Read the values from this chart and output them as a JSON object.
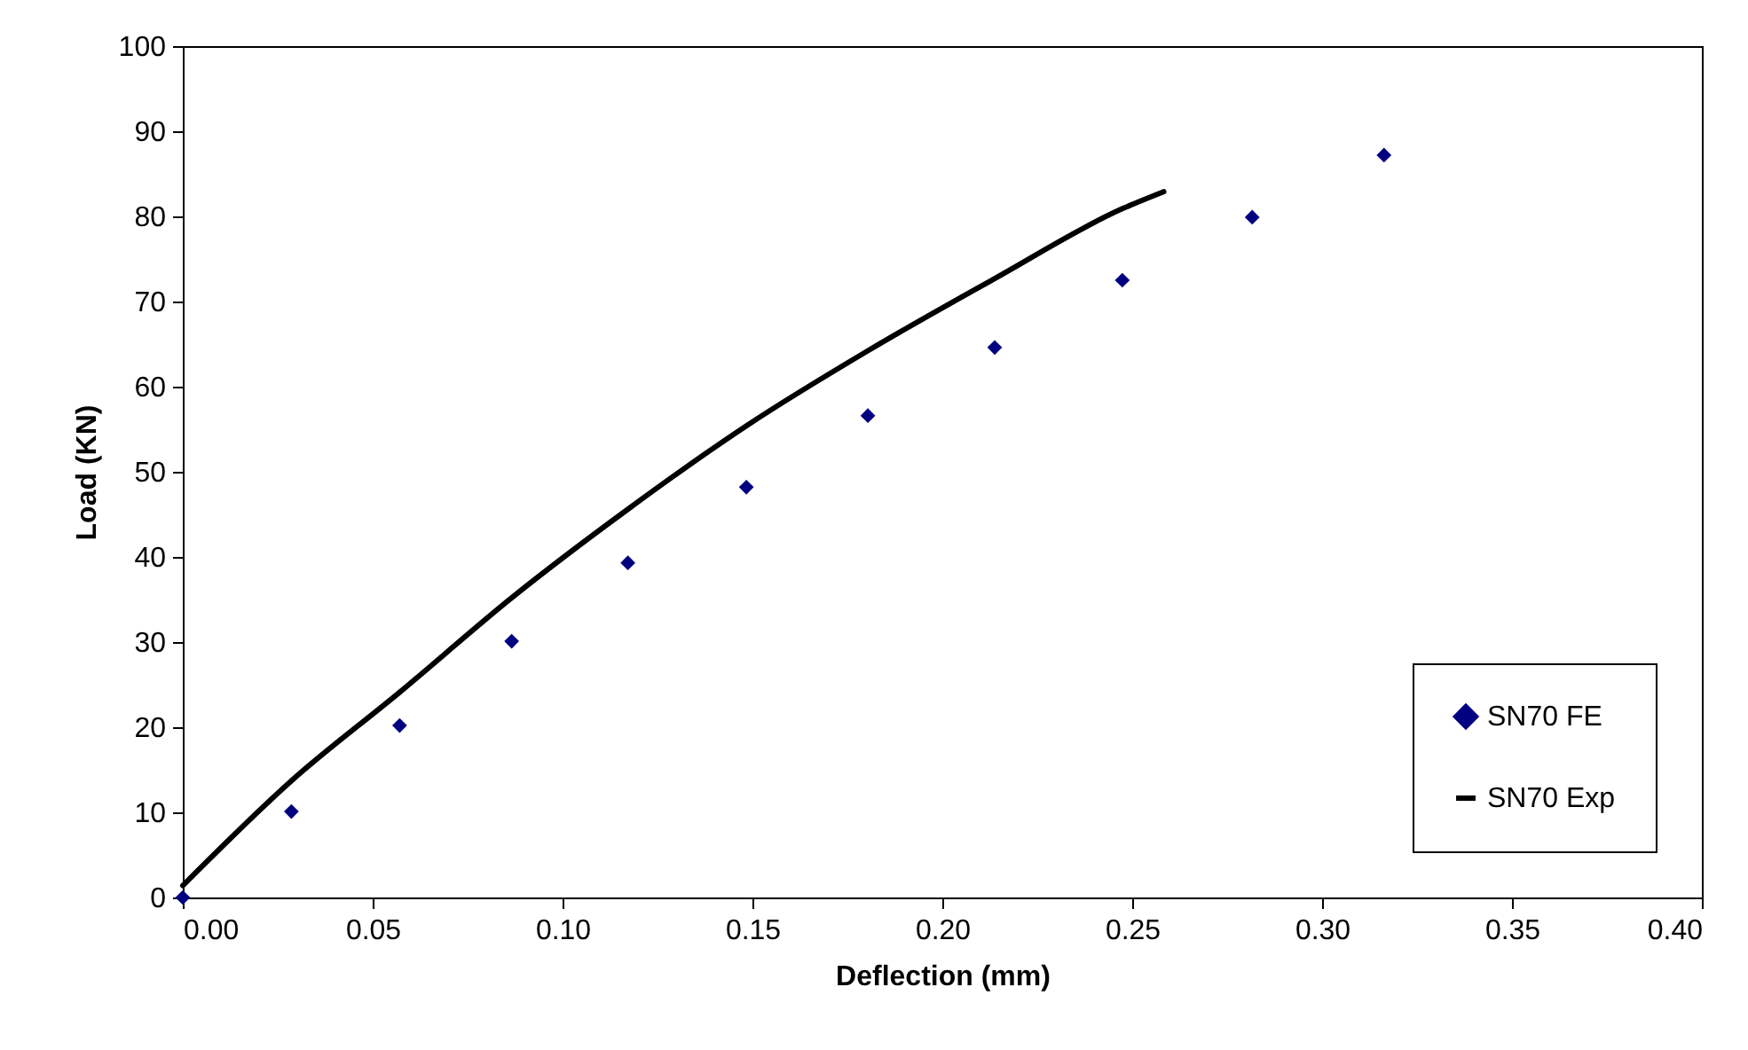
{
  "chart_data": {
    "type": "scatter",
    "xlabel": "Deflection (mm)",
    "ylabel": "Load (KN)",
    "xlim": [
      0,
      0.4
    ],
    "ylim": [
      0,
      100
    ],
    "xticks": [
      {
        "value": 0,
        "label": "0.00"
      },
      {
        "value": 0.05,
        "label": "0.05"
      },
      {
        "value": 0.1,
        "label": "0.10"
      },
      {
        "value": 0.15,
        "label": "0.15"
      },
      {
        "value": 0.2,
        "label": "0.20"
      },
      {
        "value": 0.25,
        "label": "0.25"
      },
      {
        "value": 0.3,
        "label": "0.30"
      },
      {
        "value": 0.35,
        "label": "0.35"
      },
      {
        "value": 0.4,
        "label": "0.40"
      }
    ],
    "yticks": [
      0,
      10,
      20,
      30,
      40,
      50,
      60,
      70,
      80,
      90,
      100
    ],
    "grid": false,
    "legend": "bottom right",
    "series": [
      {
        "name": "SN70 FE",
        "marker": "diamond",
        "color": "#000080",
        "x": [
          0,
          0.0286,
          0.0571,
          0.0866,
          0.1172,
          0.1484,
          0.1804,
          0.2138,
          0.2474,
          0.2816,
          0.3163
        ],
        "values": [
          0,
          10.1,
          20.2,
          30.1,
          39.3,
          48.2,
          56.6,
          64.6,
          72.5,
          79.9,
          87.2
        ]
      },
      {
        "name": "SN70 Exp",
        "type": "line",
        "color": "#000000",
        "line_style": "solid",
        "x": [
          0,
          0.0286,
          0.0571,
          0.0866,
          0.1172,
          0.1484,
          0.1807,
          0.2138,
          0.2474,
          0.2583
        ],
        "values": [
          1.4,
          13.7,
          24.1,
          35.2,
          45.6,
          55.4,
          64.3,
          72.7,
          80.9,
          82.9
        ]
      }
    ]
  }
}
